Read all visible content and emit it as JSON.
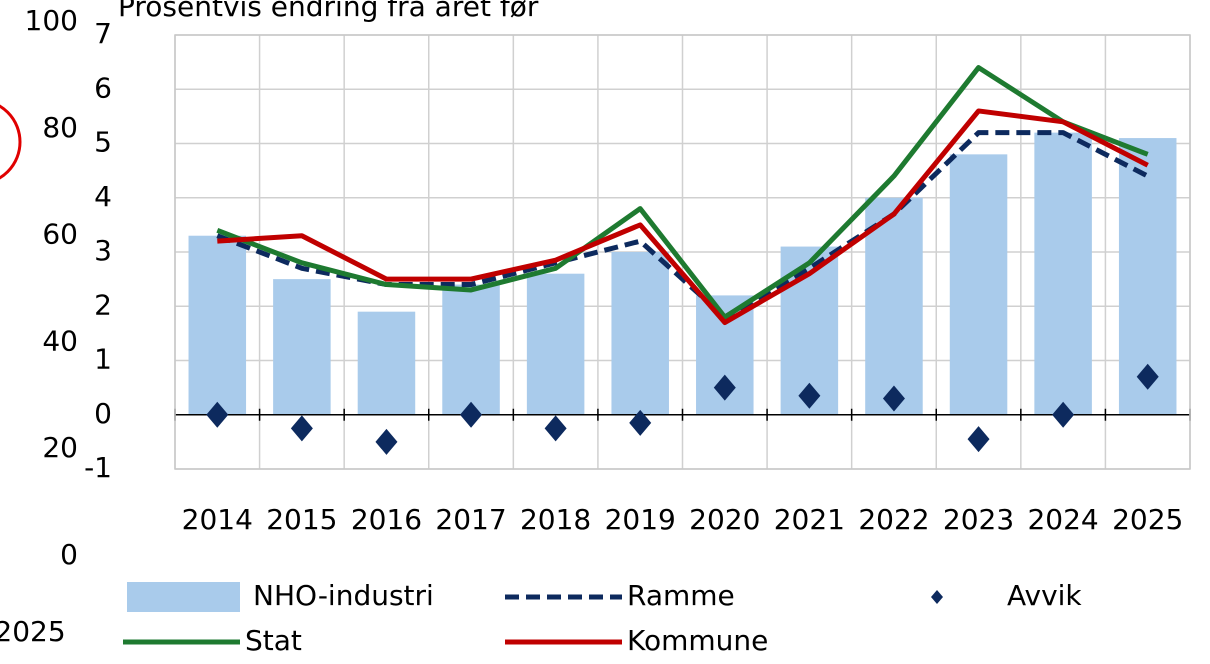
{
  "chart_data": [
    {
      "type": "bar",
      "subtitle": "Prosentvis endring fra året før",
      "categories": [
        "2014",
        "2015",
        "2016",
        "2017",
        "2018",
        "2019",
        "2020",
        "2021",
        "2022",
        "2023",
        "2024",
        "2025"
      ],
      "series": [
        {
          "name": "NHO-industri",
          "kind": "bar",
          "color": "#a9cbeb",
          "values": [
            3.3,
            2.5,
            1.9,
            2.4,
            2.6,
            3.0,
            2.2,
            3.1,
            4.0,
            4.8,
            5.2,
            5.1
          ]
        },
        {
          "name": "Ramme",
          "kind": "dashed",
          "color": "#0d2a5e",
          "values": [
            3.3,
            2.7,
            2.4,
            2.4,
            2.8,
            3.2,
            1.8,
            2.7,
            3.7,
            5.2,
            5.2,
            4.4
          ]
        },
        {
          "name": "Avvik",
          "kind": "scatter",
          "color": "#0d2a5e",
          "values": [
            0,
            -0.25,
            -0.5,
            0,
            -0.25,
            -0.15,
            0.5,
            0.35,
            0.3,
            -0.45,
            0,
            0.7
          ]
        },
        {
          "name": "Stat",
          "kind": "line",
          "color": "#1e7a30",
          "values": [
            3.4,
            2.8,
            2.4,
            2.3,
            2.7,
            3.8,
            1.8,
            2.8,
            4.4,
            6.4,
            5.4,
            4.8
          ]
        },
        {
          "name": "Kommune",
          "kind": "line",
          "color": "#c00000",
          "values": [
            3.2,
            3.3,
            2.5,
            2.5,
            2.85,
            3.5,
            1.7,
            2.6,
            3.7,
            5.6,
            5.4,
            4.6
          ]
        }
      ],
      "ylim": [
        -1,
        7
      ],
      "yticks": [
        -1,
        0,
        1,
        2,
        3,
        4,
        5,
        6,
        7
      ],
      "grid": true
    },
    {
      "type": "axis-fragment",
      "ylim": [
        0,
        100
      ],
      "yticks": [
        0,
        20,
        40,
        60,
        80,
        100
      ],
      "categories": [
        "2025"
      ]
    }
  ]
}
